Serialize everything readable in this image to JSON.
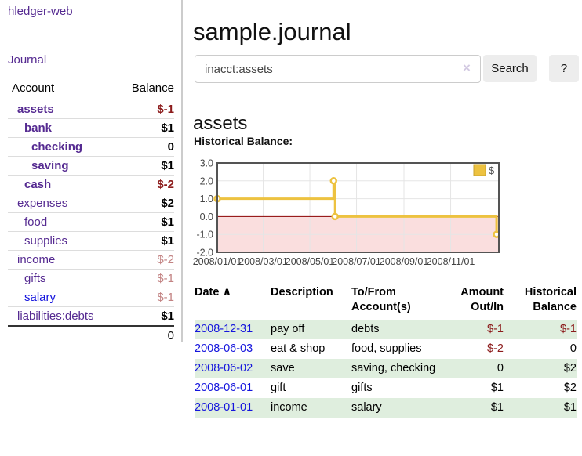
{
  "sidebar": {
    "brand": "hledger-web",
    "nav_journal": "Journal",
    "header": {
      "account": "Account",
      "balance": "Balance"
    },
    "accounts": [
      {
        "name": "assets",
        "indent": 1,
        "bold": true,
        "name_color": "purple",
        "balance": "$-1",
        "balance_style": "neg"
      },
      {
        "name": "bank",
        "indent": 2,
        "bold": true,
        "name_color": "purple",
        "balance": "$1",
        "balance_style": "pos"
      },
      {
        "name": "checking",
        "indent": 3,
        "bold": true,
        "name_color": "purple",
        "balance": "0",
        "balance_style": "pos"
      },
      {
        "name": "saving",
        "indent": 3,
        "bold": true,
        "name_color": "purple",
        "balance": "$1",
        "balance_style": "pos"
      },
      {
        "name": "cash",
        "indent": 2,
        "bold": true,
        "name_color": "purple",
        "balance": "$-2",
        "balance_style": "neg"
      },
      {
        "name": "expenses",
        "indent": 1,
        "bold": false,
        "name_color": "purple",
        "balance": "$2",
        "balance_style": "pos"
      },
      {
        "name": "food",
        "indent": 2,
        "bold": false,
        "name_color": "purple",
        "balance": "$1",
        "balance_style": "pos"
      },
      {
        "name": "supplies",
        "indent": 2,
        "bold": false,
        "name_color": "purple",
        "balance": "$1",
        "balance_style": "pos"
      },
      {
        "name": "income",
        "indent": 1,
        "bold": false,
        "name_color": "purple",
        "balance": "$-2",
        "balance_style": "soft"
      },
      {
        "name": "gifts",
        "indent": 2,
        "bold": false,
        "name_color": "purple",
        "balance": "$-1",
        "balance_style": "soft"
      },
      {
        "name": "salary",
        "indent": 2,
        "bold": false,
        "name_color": "blue",
        "balance": "$-1",
        "balance_style": "soft"
      },
      {
        "name": "liabilities:debts",
        "indent": 1,
        "bold": false,
        "name_color": "purple",
        "balance": "$1",
        "balance_style": "pos"
      }
    ],
    "total": "0"
  },
  "header": {
    "title": "sample.journal"
  },
  "search": {
    "value": "inacct:assets",
    "clear_icon": "×",
    "button_label": "Search",
    "help_label": "?"
  },
  "account_page": {
    "heading": "assets",
    "chart_label": "Historical Balance:"
  },
  "chart_data": {
    "type": "line",
    "step": true,
    "title": "Historical Balance:",
    "series": [
      {
        "name": "$",
        "color": "#edc240",
        "points": [
          [
            "2008-01-01",
            1
          ],
          [
            "2008-06-01",
            2
          ],
          [
            "2008-06-03",
            0
          ],
          [
            "2008-12-31",
            -1
          ]
        ]
      }
    ],
    "ylim": [
      -2,
      3
    ],
    "yticks": [
      "3.0",
      "2.0",
      "1.0",
      "0.0",
      "-1.0",
      "-2.0"
    ],
    "xticks": [
      "2008/01/01",
      "2008/03/01",
      "2008/05/01",
      "2008/07/01",
      "2008/09/01",
      "2008/11/01"
    ],
    "xrange": [
      "2008-01-01",
      "2009-01-03"
    ],
    "grid": true,
    "legend_position": "top-right",
    "legend": {
      "label": "$",
      "swatch_color": "#edc240"
    },
    "negative_region_color": "#fadede",
    "zero_line_color": "#8b0000",
    "grid_color": "#e5e5e5",
    "border_color": "#545454",
    "tick_label_color": "#444444"
  },
  "register": {
    "headers": {
      "date": "Date",
      "sort_icon": "∧",
      "description": "Description",
      "accounts": "To/From Account(s)",
      "amount": "Amount Out/In",
      "balance": "Historical Balance"
    },
    "rows": [
      {
        "date": "2008-12-31",
        "description": "pay off",
        "accounts": "debts",
        "amount": "$-1",
        "balance": "$-1"
      },
      {
        "date": "2008-06-03",
        "description": "eat & shop",
        "accounts": "food, supplies",
        "amount": "$-2",
        "balance": "0"
      },
      {
        "date": "2008-06-02",
        "description": "save",
        "accounts": "saving, checking",
        "amount": "0",
        "balance": "$2"
      },
      {
        "date": "2008-06-01",
        "description": "gift",
        "accounts": "gifts",
        "amount": "$1",
        "balance": "$2"
      },
      {
        "date": "2008-01-01",
        "description": "income",
        "accounts": "salary",
        "amount": "$1",
        "balance": "$1"
      }
    ]
  },
  "colors": {
    "link_purple": "#552a91",
    "link_blue": "#1414dd",
    "negative_strong": "#8c1c1c",
    "negative_soft": "#c28282",
    "row_stripe_green": "#dfeede",
    "accent_gold": "#edc240",
    "chart_negative_fill": "#fadede"
  }
}
